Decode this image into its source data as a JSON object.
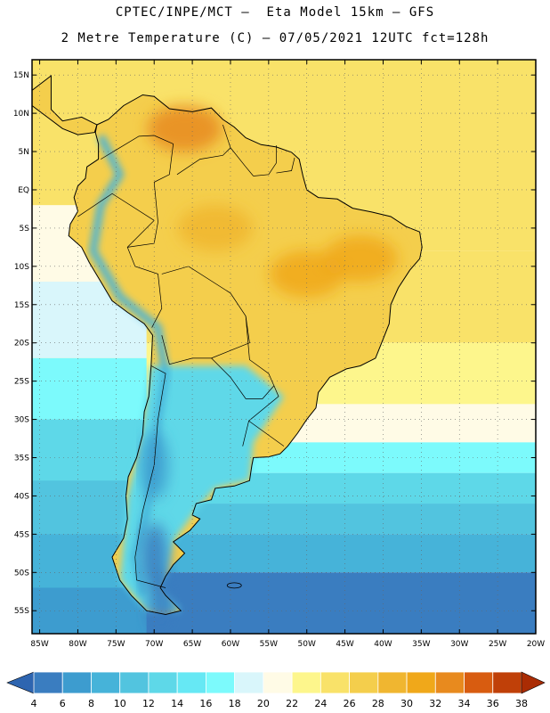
{
  "header": {
    "line1": "CPTEC/INPE/MCT –  Eta Model 15km – GFS",
    "line2": "2 Metre Temperature (C) – 07/05/2021 12UTC fct=128h"
  },
  "map": {
    "lon_range": [
      -86,
      -20
    ],
    "lat_range": [
      -58,
      17
    ],
    "lat_ticks": [
      {
        "value": 15,
        "label": "15N"
      },
      {
        "value": 10,
        "label": "10N"
      },
      {
        "value": 5,
        "label": "5N"
      },
      {
        "value": 0,
        "label": "EQ"
      },
      {
        "value": -5,
        "label": "5S"
      },
      {
        "value": -10,
        "label": "10S"
      },
      {
        "value": -15,
        "label": "15S"
      },
      {
        "value": -20,
        "label": "20S"
      },
      {
        "value": -25,
        "label": "25S"
      },
      {
        "value": -30,
        "label": "30S"
      },
      {
        "value": -35,
        "label": "35S"
      },
      {
        "value": -40,
        "label": "40S"
      },
      {
        "value": -45,
        "label": "45S"
      },
      {
        "value": -50,
        "label": "50S"
      },
      {
        "value": -55,
        "label": "55S"
      }
    ],
    "lon_ticks": [
      {
        "value": -85,
        "label": "85W"
      },
      {
        "value": -80,
        "label": "80W"
      },
      {
        "value": -75,
        "label": "75W"
      },
      {
        "value": -70,
        "label": "70W"
      },
      {
        "value": -65,
        "label": "65W"
      },
      {
        "value": -60,
        "label": "60W"
      },
      {
        "value": -55,
        "label": "55W"
      },
      {
        "value": -50,
        "label": "50W"
      },
      {
        "value": -45,
        "label": "45W"
      },
      {
        "value": -40,
        "label": "40W"
      },
      {
        "value": -35,
        "label": "35W"
      },
      {
        "value": -30,
        "label": "30W"
      },
      {
        "value": -25,
        "label": "25W"
      },
      {
        "value": -20,
        "label": "20W"
      }
    ],
    "ocean_bands": [
      {
        "lat": 17,
        "temp": 26
      },
      {
        "lat": 5,
        "temp": 26
      },
      {
        "lat": -8,
        "temp": 26
      },
      {
        "lat": -20,
        "temp": 24
      },
      {
        "lat": -28,
        "temp": 22
      },
      {
        "lat": -33,
        "temp": 18
      },
      {
        "lat": -37,
        "temp": 14
      },
      {
        "lat": -41,
        "temp": 12
      },
      {
        "lat": -45,
        "temp": 10
      },
      {
        "lat": -50,
        "temp": 6
      },
      {
        "lat": -58,
        "temp": 6
      }
    ],
    "pacific_bands": [
      {
        "lat": -2,
        "temp": 22
      },
      {
        "lat": -12,
        "temp": 20
      },
      {
        "lat": -22,
        "temp": 18
      },
      {
        "lat": -30,
        "temp": 14
      },
      {
        "lat": -38,
        "temp": 12
      },
      {
        "lat": -45,
        "temp": 10
      },
      {
        "lat": -52,
        "temp": 8
      },
      {
        "lat": -58,
        "temp": 6
      }
    ],
    "warm_spots": [
      {
        "name": "venezuela",
        "lon": -66,
        "lat": 8,
        "temp": 34
      },
      {
        "name": "central-brazil",
        "lon": -50,
        "lat": -11,
        "temp": 32
      },
      {
        "name": "bahia",
        "lon": -43,
        "lat": -9,
        "temp": 32
      },
      {
        "name": "amazon",
        "lon": -62,
        "lat": -5,
        "temp": 30
      }
    ],
    "cold_spots": [
      {
        "name": "andes-south",
        "lon": -70,
        "lat": -36,
        "temp": 8
      },
      {
        "name": "patagonia",
        "lon": -70,
        "lat": -48,
        "temp": 6
      },
      {
        "name": "tierra-del-fuego",
        "lon": -69,
        "lat": -54,
        "temp": 6
      }
    ]
  },
  "colorbar": {
    "ticks": [
      "4",
      "6",
      "8",
      "10",
      "12",
      "14",
      "16",
      "18",
      "20",
      "22",
      "24",
      "26",
      "28",
      "30",
      "32",
      "34",
      "36",
      "38"
    ],
    "colors": [
      {
        "temp": 4,
        "color": "#2e65b0"
      },
      {
        "temp": 6,
        "color": "#3a7dc0"
      },
      {
        "temp": 8,
        "color": "#3d9ccf"
      },
      {
        "temp": 10,
        "color": "#46b3d9"
      },
      {
        "temp": 12,
        "color": "#52c4df"
      },
      {
        "temp": 14,
        "color": "#5ed8e8"
      },
      {
        "temp": 16,
        "color": "#66e8f4"
      },
      {
        "temp": 18,
        "color": "#7cfafc"
      },
      {
        "temp": 20,
        "color": "#d9f6fb"
      },
      {
        "temp": 22,
        "color": "#fffbe6"
      },
      {
        "temp": 24,
        "color": "#fdf68c"
      },
      {
        "temp": 26,
        "color": "#f9e269"
      },
      {
        "temp": 28,
        "color": "#f4ce4c"
      },
      {
        "temp": 30,
        "color": "#f0b630"
      },
      {
        "temp": 32,
        "color": "#f0a81a"
      },
      {
        "temp": 34,
        "color": "#e88a1e"
      },
      {
        "temp": 36,
        "color": "#d85c10"
      },
      {
        "temp": 38,
        "color": "#c04008"
      },
      {
        "temp": 40,
        "color": "#aa2c04"
      }
    ]
  }
}
